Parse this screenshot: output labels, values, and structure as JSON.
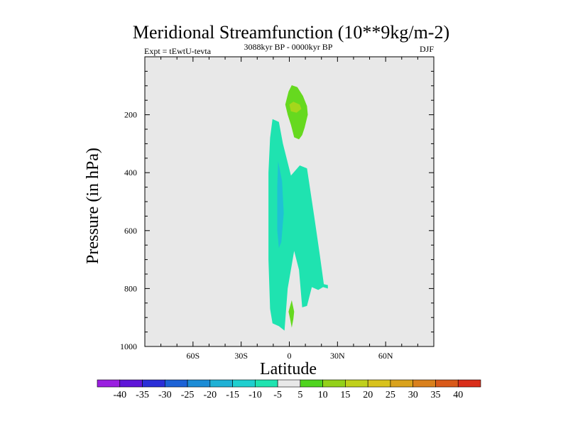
{
  "chart_data": {
    "type": "contour",
    "title": "Meridional Streamfunction (10**9kg/m-2)",
    "subtitle_left": "Expt = tEwtU-tevta",
    "subtitle_center": "3088kyr BP - 0000kyr BP",
    "subtitle_right": "DJF",
    "xlabel": "Latitude",
    "ylabel": "Pressure (in hPa)",
    "xlim": [
      -90,
      90
    ],
    "ylim": [
      1000,
      0
    ],
    "xticks": [
      {
        "value": -60,
        "label": "60S"
      },
      {
        "value": -30,
        "label": "30S"
      },
      {
        "value": 0,
        "label": "0"
      },
      {
        "value": 30,
        "label": "30N"
      },
      {
        "value": 60,
        "label": "60N"
      }
    ],
    "yticks": [
      {
        "value": 200,
        "label": "200"
      },
      {
        "value": 400,
        "label": "400"
      },
      {
        "value": 600,
        "label": "600"
      },
      {
        "value": 800,
        "label": "800"
      },
      {
        "value": 1000,
        "label": "1000"
      }
    ],
    "background_color": "#e8e8e8",
    "regions": [
      {
        "level": "-10 to -5",
        "color": "#1fe3b0",
        "outline": [
          [
            -10.5,
            215
          ],
          [
            -6.5,
            225
          ],
          [
            -4,
            300
          ],
          [
            1,
            410
          ],
          [
            6.5,
            375
          ],
          [
            11,
            385
          ],
          [
            15.5,
            550
          ],
          [
            19,
            685
          ],
          [
            21.5,
            785
          ],
          [
            24,
            788
          ],
          [
            24,
            800
          ],
          [
            21,
            795
          ],
          [
            18,
            805
          ],
          [
            14,
            795
          ],
          [
            11,
            860
          ],
          [
            8,
            865
          ],
          [
            6,
            735
          ],
          [
            3,
            670
          ],
          [
            -1,
            800
          ],
          [
            -3,
            945
          ],
          [
            -6.5,
            930
          ],
          [
            -10.5,
            920
          ],
          [
            -12,
            870
          ],
          [
            -13,
            700
          ],
          [
            -13,
            400
          ],
          [
            -12,
            280
          ]
        ]
      },
      {
        "level": "-15 to -10",
        "color": "#1fc1d4",
        "outline": [
          [
            -7,
            360
          ],
          [
            -4.5,
            430
          ],
          [
            -3.5,
            540
          ],
          [
            -5,
            640
          ],
          [
            -6.5,
            660
          ],
          [
            -7.5,
            600
          ],
          [
            -7.5,
            450
          ]
        ]
      },
      {
        "level": "5 to 10",
        "color": "#66d91f",
        "outline": [
          [
            1.5,
            98
          ],
          [
            5,
            105
          ],
          [
            8.5,
            135
          ],
          [
            11,
            170
          ],
          [
            11.5,
            200
          ],
          [
            9.5,
            245
          ],
          [
            8,
            270
          ],
          [
            6,
            285
          ],
          [
            3,
            278
          ],
          [
            1,
            235
          ],
          [
            -1,
            200
          ],
          [
            -2.5,
            165
          ],
          [
            -0.5,
            120
          ]
        ]
      },
      {
        "level": "10 to 15",
        "color": "#a4d71b",
        "outline": [
          [
            0,
            165
          ],
          [
            2.5,
            155
          ],
          [
            6.5,
            165
          ],
          [
            7.5,
            180
          ],
          [
            4.5,
            193
          ],
          [
            1,
            188
          ]
        ]
      },
      {
        "level": "5 to 10",
        "color": "#66d91f",
        "outline": [
          [
            1.5,
            840
          ],
          [
            3,
            880
          ],
          [
            2.5,
            905
          ],
          [
            1.5,
            935
          ],
          [
            0.5,
            905
          ],
          [
            -0.5,
            880
          ]
        ]
      }
    ],
    "colorbar": {
      "ticks": [
        "-40",
        "-35",
        "-30",
        "-25",
        "-20",
        "-15",
        "-10",
        "-5",
        "5",
        "10",
        "15",
        "20",
        "25",
        "30",
        "35",
        "40"
      ],
      "colors": [
        "#9a1fe0",
        "#5e16d8",
        "#2a2ed7",
        "#1c62d6",
        "#1c8cd6",
        "#1fb1d5",
        "#1fcfcf",
        "#1fe3b0",
        "#e8e8e8",
        "#4fd41f",
        "#93d11a",
        "#c0d01b",
        "#d8c21c",
        "#d9a21c",
        "#d9801c",
        "#d95a1a",
        "#d92e1a"
      ]
    }
  }
}
